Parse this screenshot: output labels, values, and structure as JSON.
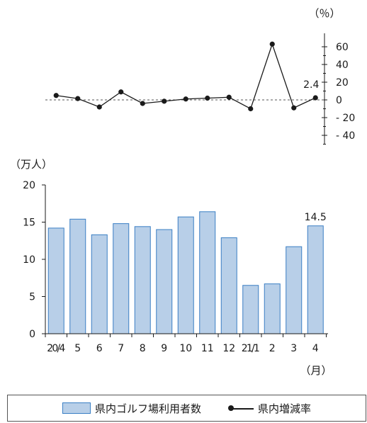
{
  "chart_data": [
    {
      "type": "line",
      "unit_label": "（％）",
      "x": [
        "20/4",
        "5",
        "6",
        "7",
        "8",
        "9",
        "10",
        "11",
        "12",
        "21/1",
        "2",
        "3",
        "4"
      ],
      "series": [
        {
          "name": "県内増減率",
          "values": [
            5,
            1.5,
            -8,
            9,
            -4,
            -1.5,
            1,
            2,
            3,
            -10,
            63,
            -9,
            2.4
          ]
        }
      ],
      "ylim": [
        -45,
        70
      ],
      "ytick_values": [
        60,
        40,
        20,
        0,
        -20,
        -40
      ],
      "ytick_labels": [
        "60",
        "40",
        "20",
        "0",
        "- 20",
        "- 40"
      ],
      "reference_line": 0,
      "data_labels": [
        {
          "index": 12,
          "text": "2.4"
        }
      ]
    },
    {
      "type": "bar",
      "unit_label": "（万人）",
      "xunit_label": "（月）",
      "categories": [
        "20/4",
        "5",
        "6",
        "7",
        "8",
        "9",
        "10",
        "11",
        "12",
        "21/1",
        "2",
        "3",
        "4"
      ],
      "series": [
        {
          "name": "県内ゴルフ場利用者数",
          "values": [
            14.2,
            15.4,
            13.3,
            14.8,
            14.4,
            14.0,
            15.7,
            16.4,
            12.9,
            6.5,
            6.7,
            11.7,
            14.5
          ]
        }
      ],
      "ylim": [
        0,
        20
      ],
      "ytick_labels": [
        "0",
        "5",
        "10",
        "15",
        "20"
      ],
      "data_labels": [
        {
          "index": 12,
          "text": "14.5"
        }
      ],
      "colors": {
        "bar_fill": "#b8cfe8",
        "bar_stroke": "#3a7fc4"
      }
    }
  ],
  "legend": {
    "bar_label": "県内ゴルフ場利用者数",
    "line_label": "県内増減率"
  }
}
